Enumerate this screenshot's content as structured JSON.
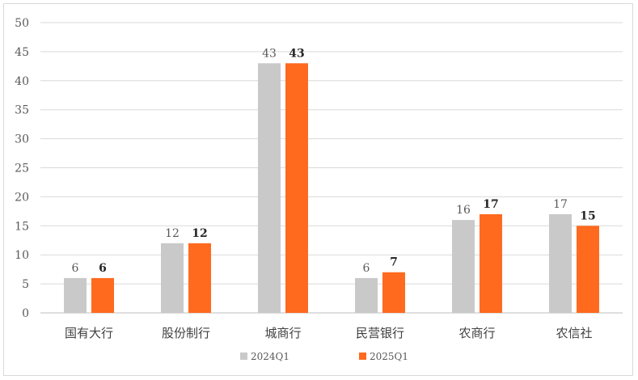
{
  "chart_data": {
    "type": "bar",
    "categories": [
      "国有大行",
      "股份制行",
      "城商行",
      "民营银行",
      "农商行",
      "农信社"
    ],
    "series": [
      {
        "name": "2024Q1",
        "values": [
          6,
          12,
          43,
          6,
          16,
          17
        ],
        "color": "#c9c9c9"
      },
      {
        "name": "2025Q1",
        "values": [
          6,
          12,
          43,
          7,
          17,
          15
        ],
        "color": "#ff6a1f"
      }
    ],
    "yticks": [
      0,
      5,
      10,
      15,
      20,
      25,
      30,
      35,
      40,
      45,
      50
    ],
    "ylim": [
      0,
      50
    ],
    "grid": true,
    "legend": "bottom",
    "data_labels": true
  }
}
